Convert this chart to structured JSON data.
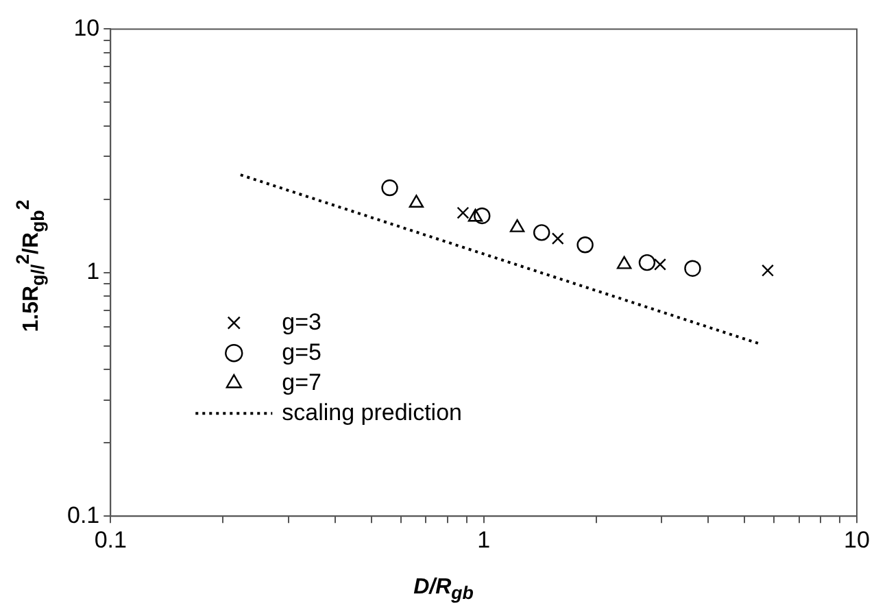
{
  "chart_data": {
    "type": "scatter",
    "xlabel": "D/R$_{gb}$",
    "ylabel": "1.5R$_{g//}$$^{2}$/R$_{gb}$$^{2}$",
    "log": "xy",
    "grid": false,
    "legend": "bottom left",
    "xlim": [
      0.1,
      10
    ],
    "ylim": [
      0.1,
      10
    ],
    "xticks": [
      0.1,
      {
        "value": 0.2,
        "label": null
      },
      {
        "value": 0.3,
        "label": null
      },
      {
        "value": 0.4,
        "label": null
      },
      {
        "value": 0.5,
        "label": null
      },
      {
        "value": 0.6,
        "label": null
      },
      {
        "value": 0.7,
        "label": null
      },
      {
        "value": 0.8,
        "label": null
      },
      {
        "value": 0.9,
        "label": null
      },
      1,
      {
        "value": 2,
        "label": null
      },
      {
        "value": 3,
        "label": null
      },
      {
        "value": 4,
        "label": null
      },
      {
        "value": 5,
        "label": null
      },
      {
        "value": 6,
        "label": null
      },
      {
        "value": 7,
        "label": null
      },
      {
        "value": 8,
        "label": null
      },
      {
        "value": 9,
        "label": null
      },
      10
    ],
    "yticks": [
      0.1,
      {
        "value": 0.2,
        "label": null
      },
      {
        "value": 0.3,
        "label": null
      },
      {
        "value": 0.4,
        "label": null
      },
      {
        "value": 0.5,
        "label": null
      },
      {
        "value": 0.6,
        "label": null
      },
      {
        "value": 0.7,
        "label": null
      },
      {
        "value": 0.8,
        "label": null
      },
      {
        "value": 0.9,
        "label": null
      },
      1,
      {
        "value": 2,
        "label": null
      },
      {
        "value": 3,
        "label": null
      },
      {
        "value": 4,
        "label": null
      },
      {
        "value": 5,
        "label": null
      },
      {
        "value": 6,
        "label": null
      },
      {
        "value": 7,
        "label": null
      },
      {
        "value": 8,
        "label": null
      },
      {
        "value": 9,
        "label": null
      },
      10
    ],
    "series": [
      {
        "name": "g=3",
        "type": "scatter",
        "marker": "cross",
        "color": "#000000",
        "x": [
          0.88,
          1.58,
          2.97,
          5.77
        ],
        "values": [
          1.76,
          1.38,
          1.08,
          1.02
        ]
      },
      {
        "name": "g=5",
        "type": "scatter",
        "marker": "circle",
        "color": "#000000",
        "x": [
          0.56,
          0.99,
          1.43,
          1.87,
          2.74,
          3.63
        ],
        "values": [
          2.23,
          1.71,
          1.46,
          1.3,
          1.1,
          1.04
        ]
      },
      {
        "name": "g=7",
        "type": "scatter",
        "marker": "triangle",
        "color": "#000000",
        "x": [
          0.66,
          0.95,
          1.23,
          2.38
        ],
        "values": [
          1.93,
          1.69,
          1.53,
          1.08
        ]
      },
      {
        "name": "scaling prediction",
        "type": "line",
        "marker": "none",
        "line_style": "dotted",
        "color": "#000000",
        "x": [
          0.223,
          5.49
        ],
        "values": [
          2.52,
          0.51
        ]
      }
    ]
  }
}
